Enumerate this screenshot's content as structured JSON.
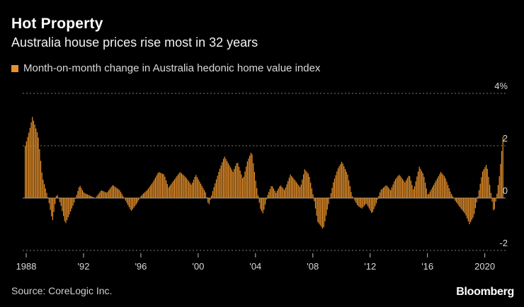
{
  "header": {
    "title": "Hot Property",
    "subtitle": "Australia house prices rise most in 32 years"
  },
  "legend": {
    "label": "Month-on-month change in Australia hedonic home value index",
    "color": "#e8912b"
  },
  "footer": {
    "source": "Source: CoreLogic Inc.",
    "brand": "Bloomberg"
  },
  "chart_data": {
    "type": "bar",
    "title": "Hot Property",
    "subtitle": "Australia house prices rise most in 32 years",
    "series": [
      {
        "name": "Month-on-month change in Australia hedonic home value index",
        "color": "#e8912b",
        "anchors": [
          [
            1988.0,
            2.0
          ],
          [
            1988.3,
            2.6
          ],
          [
            1988.5,
            3.1
          ],
          [
            1988.9,
            2.4
          ],
          [
            1989.2,
            0.8
          ],
          [
            1989.6,
            0.0
          ],
          [
            1989.9,
            -0.9
          ],
          [
            1990.2,
            0.2
          ],
          [
            1990.5,
            -0.3
          ],
          [
            1990.8,
            -1.0
          ],
          [
            1991.1,
            -0.6
          ],
          [
            1991.4,
            -0.2
          ],
          [
            1991.8,
            0.5
          ],
          [
            1992.1,
            0.2
          ],
          [
            1992.5,
            0.1
          ],
          [
            1992.9,
            0.0
          ],
          [
            1993.3,
            0.3
          ],
          [
            1993.7,
            0.2
          ],
          [
            1994.1,
            0.5
          ],
          [
            1994.6,
            0.3
          ],
          [
            1995.0,
            -0.1
          ],
          [
            1995.4,
            -0.5
          ],
          [
            1995.8,
            -0.2
          ],
          [
            1996.1,
            0.1
          ],
          [
            1996.5,
            0.3
          ],
          [
            1996.9,
            0.6
          ],
          [
            1997.3,
            1.0
          ],
          [
            1997.7,
            0.9
          ],
          [
            1998.0,
            0.4
          ],
          [
            1998.4,
            0.7
          ],
          [
            1998.8,
            1.0
          ],
          [
            1999.2,
            0.8
          ],
          [
            1999.6,
            0.5
          ],
          [
            1999.9,
            0.9
          ],
          [
            2000.2,
            0.6
          ],
          [
            2000.6,
            0.2
          ],
          [
            2000.8,
            -0.3
          ],
          [
            2001.1,
            0.3
          ],
          [
            2001.5,
            1.0
          ],
          [
            2001.9,
            1.6
          ],
          [
            2002.2,
            1.3
          ],
          [
            2002.5,
            1.0
          ],
          [
            2002.8,
            1.4
          ],
          [
            2003.2,
            0.7
          ],
          [
            2003.5,
            1.4
          ],
          [
            2003.8,
            1.8
          ],
          [
            2004.1,
            0.6
          ],
          [
            2004.4,
            -0.4
          ],
          [
            2004.6,
            -0.6
          ],
          [
            2004.9,
            0.1
          ],
          [
            2005.2,
            0.5
          ],
          [
            2005.5,
            0.2
          ],
          [
            2005.8,
            0.5
          ],
          [
            2006.1,
            0.3
          ],
          [
            2006.5,
            0.9
          ],
          [
            2006.8,
            0.7
          ],
          [
            2007.2,
            0.4
          ],
          [
            2007.5,
            1.1
          ],
          [
            2007.8,
            0.9
          ],
          [
            2008.1,
            0.1
          ],
          [
            2008.4,
            -0.9
          ],
          [
            2008.8,
            -1.2
          ],
          [
            2009.1,
            -0.4
          ],
          [
            2009.5,
            0.6
          ],
          [
            2009.8,
            1.1
          ],
          [
            2010.1,
            1.4
          ],
          [
            2010.5,
            0.9
          ],
          [
            2010.8,
            0.1
          ],
          [
            2011.2,
            -0.3
          ],
          [
            2011.5,
            -0.4
          ],
          [
            2011.8,
            -0.2
          ],
          [
            2012.2,
            -0.6
          ],
          [
            2012.5,
            -0.2
          ],
          [
            2012.8,
            0.3
          ],
          [
            2013.2,
            0.5
          ],
          [
            2013.5,
            0.3
          ],
          [
            2013.8,
            0.7
          ],
          [
            2014.1,
            0.9
          ],
          [
            2014.5,
            0.6
          ],
          [
            2014.8,
            0.9
          ],
          [
            2015.1,
            0.3
          ],
          [
            2015.5,
            1.2
          ],
          [
            2015.8,
            0.9
          ],
          [
            2016.1,
            0.1
          ],
          [
            2016.4,
            0.4
          ],
          [
            2016.7,
            0.7
          ],
          [
            2017.0,
            1.0
          ],
          [
            2017.3,
            0.8
          ],
          [
            2017.7,
            0.2
          ],
          [
            2018.0,
            -0.1
          ],
          [
            2018.4,
            -0.4
          ],
          [
            2018.7,
            -0.6
          ],
          [
            2019.0,
            -1.0
          ],
          [
            2019.3,
            -0.7
          ],
          [
            2019.6,
            0.1
          ],
          [
            2019.9,
            1.0
          ],
          [
            2020.2,
            1.3
          ],
          [
            2020.5,
            0.2
          ],
          [
            2020.7,
            -0.6
          ],
          [
            2020.9,
            0.1
          ],
          [
            2021.1,
            0.9
          ],
          [
            2021.3,
            2.1
          ],
          [
            2021.4,
            2.8
          ]
        ]
      }
    ],
    "x_ticks": [
      {
        "value": 1988,
        "label": "1988"
      },
      {
        "value": 1992,
        "label": "'92"
      },
      {
        "value": 1996,
        "label": "'96"
      },
      {
        "value": 2000,
        "label": "'00"
      },
      {
        "value": 2004,
        "label": "'04"
      },
      {
        "value": 2008,
        "label": "'08"
      },
      {
        "value": 2012,
        "label": "'12"
      },
      {
        "value": 2016,
        "label": "'16"
      },
      {
        "value": 2020,
        "label": "2020"
      }
    ],
    "y_ticks": [
      {
        "value": 4,
        "label": "4%"
      },
      {
        "value": 2,
        "label": "2"
      },
      {
        "value": 0,
        "label": "0"
      },
      {
        "value": -2,
        "label": "-2"
      }
    ],
    "xlim": [
      1987.85,
      2021.55
    ],
    "ylim": [
      -2,
      4
    ],
    "grid": true,
    "legend_position": "top-left"
  }
}
